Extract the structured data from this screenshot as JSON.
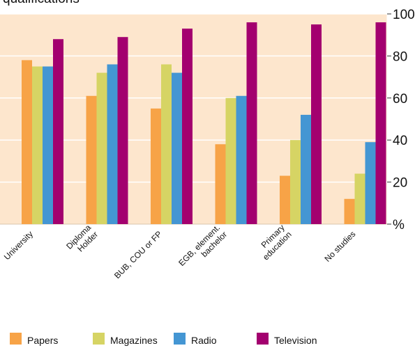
{
  "chart_data": {
    "type": "bar",
    "title": "qualifications",
    "categories": [
      [
        "University"
      ],
      [
        "Diploma",
        "Holder"
      ],
      [
        "BUB, COU or FP"
      ],
      [
        "EGB, element.",
        "bachelor"
      ],
      [
        "Primary",
        "education"
      ],
      [
        "No studies"
      ]
    ],
    "series": [
      {
        "name": "Papers",
        "color": "#f7a347",
        "values": [
          78,
          61,
          55,
          38,
          23,
          12
        ]
      },
      {
        "name": "Magazines",
        "color": "#d6d464",
        "values": [
          75,
          72,
          76,
          60,
          40,
          24
        ]
      },
      {
        "name": "Radio",
        "color": "#4496d3",
        "values": [
          75,
          76,
          72,
          61,
          52,
          39
        ]
      },
      {
        "name": "Television",
        "color": "#a3006f",
        "values": [
          88,
          89,
          93,
          96,
          95,
          96
        ]
      }
    ],
    "y_ticks": [
      "%",
      "20",
      "40",
      "60",
      "80",
      "100"
    ],
    "ylim": [
      0,
      100
    ],
    "grid": true,
    "plot_background": "#fde6cd",
    "grid_color": "#ffffff",
    "legend_position": "bottom"
  }
}
